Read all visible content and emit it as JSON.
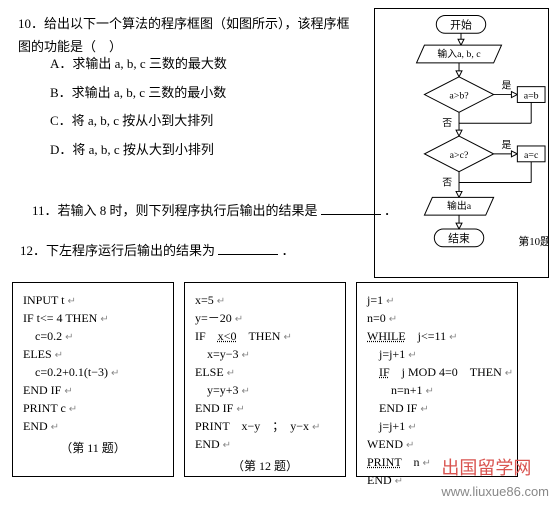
{
  "q10": {
    "text": "10．给出以下一个算法的程序框图（如图所示），该程序框图的功能是（　）",
    "options": {
      "A": "A．求输出 a, b, c 三数的最大数",
      "B": "B．求输出 a, b, c 三数的最小数",
      "C": "C．将 a, b, c 按从小到大排列",
      "D": "D．将 a, b, c 按从大到小排列"
    }
  },
  "q11": {
    "text_pre": "11．若输入 8 时，则下列程序执行后输出的结果是",
    "text_post": "．"
  },
  "q12": {
    "text_pre": "12．下左程序运行后输出的结果为",
    "text_post": "．"
  },
  "flowchart": {
    "start": "开始",
    "input": "输入a, b, c",
    "cond1": "a>b?",
    "assign1": "a=b",
    "cond2": "a>c?",
    "assign2": "a=c",
    "output": "输出a",
    "end": "结束",
    "yes": "是",
    "no": "否",
    "label": "第10题",
    "colors": {
      "stroke": "#000000",
      "fill": "#ffffff",
      "text": "#000000"
    }
  },
  "code11": {
    "title": "（第 11 题）",
    "lines": [
      {
        "t": "INPUT t",
        "i": 0
      },
      {
        "t": "IF t<= 4 THEN",
        "i": 0
      },
      {
        "t": "c=0.2",
        "i": 1
      },
      {
        "t": "ELES",
        "i": 0
      },
      {
        "t": "c=0.2+0.1(t−3)",
        "i": 1
      },
      {
        "t": "END IF",
        "i": 0
      },
      {
        "t": "PRINT c",
        "i": 0
      },
      {
        "t": "END",
        "i": 0
      }
    ]
  },
  "code12": {
    "title": "（第 12 题）",
    "lines": [
      {
        "t": "x=5",
        "i": 0
      },
      {
        "t": "y=－20",
        "i": 0
      },
      {
        "t": "IF　x<0　THEN",
        "i": 0,
        "u": "x<0"
      },
      {
        "t": "x=y−3",
        "i": 1
      },
      {
        "t": "ELSE",
        "i": 0
      },
      {
        "t": "y=y+3",
        "i": 1
      },
      {
        "t": "END IF",
        "i": 0
      },
      {
        "t": "PRINT　x−y　；　y−x",
        "i": 0
      },
      {
        "t": "END",
        "i": 0
      }
    ]
  },
  "code13": {
    "lines": [
      {
        "t": "j=1",
        "i": 0
      },
      {
        "t": "n=0",
        "i": 0
      },
      {
        "t": "WHILE　j<=11",
        "i": 0,
        "u": "WHILE"
      },
      {
        "t": "j=j+1",
        "i": 1
      },
      {
        "t": "IF　j MOD 4=0　THEN",
        "i": 1,
        "u": "IF"
      },
      {
        "t": "n=n+1",
        "i": 2
      },
      {
        "t": "END IF",
        "i": 1
      },
      {
        "t": "j=j+1",
        "i": 1
      },
      {
        "t": "WEND",
        "i": 0
      },
      {
        "t": "PRINT　n",
        "i": 0,
        "u": "PRINT"
      },
      {
        "t": "END",
        "i": 0
      }
    ]
  },
  "watermark": {
    "cn": "出国留学网",
    "url": "www.liuxue86.com"
  }
}
